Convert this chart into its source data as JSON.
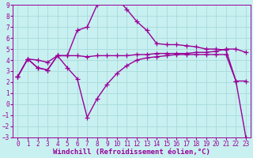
{
  "xlabel": "Windchill (Refroidissement éolien,°C)",
  "background_color": "#c8f0f0",
  "grid_color": "#a8dada",
  "line_color": "#990099",
  "xlim": [
    -0.5,
    23.5
  ],
  "ylim": [
    -3,
    9
  ],
  "xticks": [
    0,
    1,
    2,
    3,
    4,
    5,
    6,
    7,
    8,
    9,
    10,
    11,
    12,
    13,
    14,
    15,
    16,
    17,
    18,
    19,
    20,
    21,
    22,
    23
  ],
  "yticks": [
    -3,
    -2,
    -1,
    0,
    1,
    2,
    3,
    4,
    5,
    6,
    7,
    8,
    9
  ],
  "series1_x": [
    0,
    1,
    2,
    3,
    4,
    5,
    6,
    7,
    8,
    9,
    10,
    11,
    12,
    13,
    14,
    15,
    16,
    17,
    18,
    19,
    20,
    21,
    22,
    23
  ],
  "series1_y": [
    2.5,
    4.1,
    4.0,
    3.8,
    4.4,
    4.4,
    4.4,
    4.3,
    4.4,
    4.4,
    4.4,
    4.4,
    4.5,
    4.5,
    4.6,
    4.6,
    4.6,
    4.6,
    4.7,
    4.7,
    4.8,
    5.0,
    5.0,
    4.7
  ],
  "series2_x": [
    0,
    1,
    2,
    3,
    4,
    5,
    6,
    7,
    8,
    9,
    10,
    11,
    12,
    13,
    14,
    15,
    16,
    17,
    18,
    19,
    20,
    21,
    22,
    23
  ],
  "series2_y": [
    2.5,
    4.1,
    3.3,
    3.1,
    4.4,
    4.4,
    6.7,
    7.0,
    9.0,
    9.3,
    9.6,
    8.6,
    7.5,
    6.7,
    5.5,
    5.4,
    5.4,
    5.3,
    5.2,
    5.0,
    5.0,
    4.9,
    2.1,
    2.1
  ],
  "series3_x": [
    0,
    1,
    2,
    3,
    4,
    5,
    6,
    7,
    8,
    9,
    10,
    11,
    12,
    13,
    14,
    15,
    16,
    17,
    18,
    19,
    20,
    21,
    22,
    23
  ],
  "series3_y": [
    2.5,
    4.1,
    3.3,
    3.1,
    4.4,
    3.3,
    2.3,
    -1.2,
    0.5,
    1.8,
    2.8,
    3.5,
    4.0,
    4.2,
    4.3,
    4.4,
    4.5,
    4.5,
    4.5,
    4.5,
    4.5,
    4.5,
    2.1,
    -3.0
  ],
  "marker": "+",
  "markersize": 4,
  "linewidth": 1.0,
  "xlabel_fontsize": 6.5,
  "tick_fontsize": 5.5
}
